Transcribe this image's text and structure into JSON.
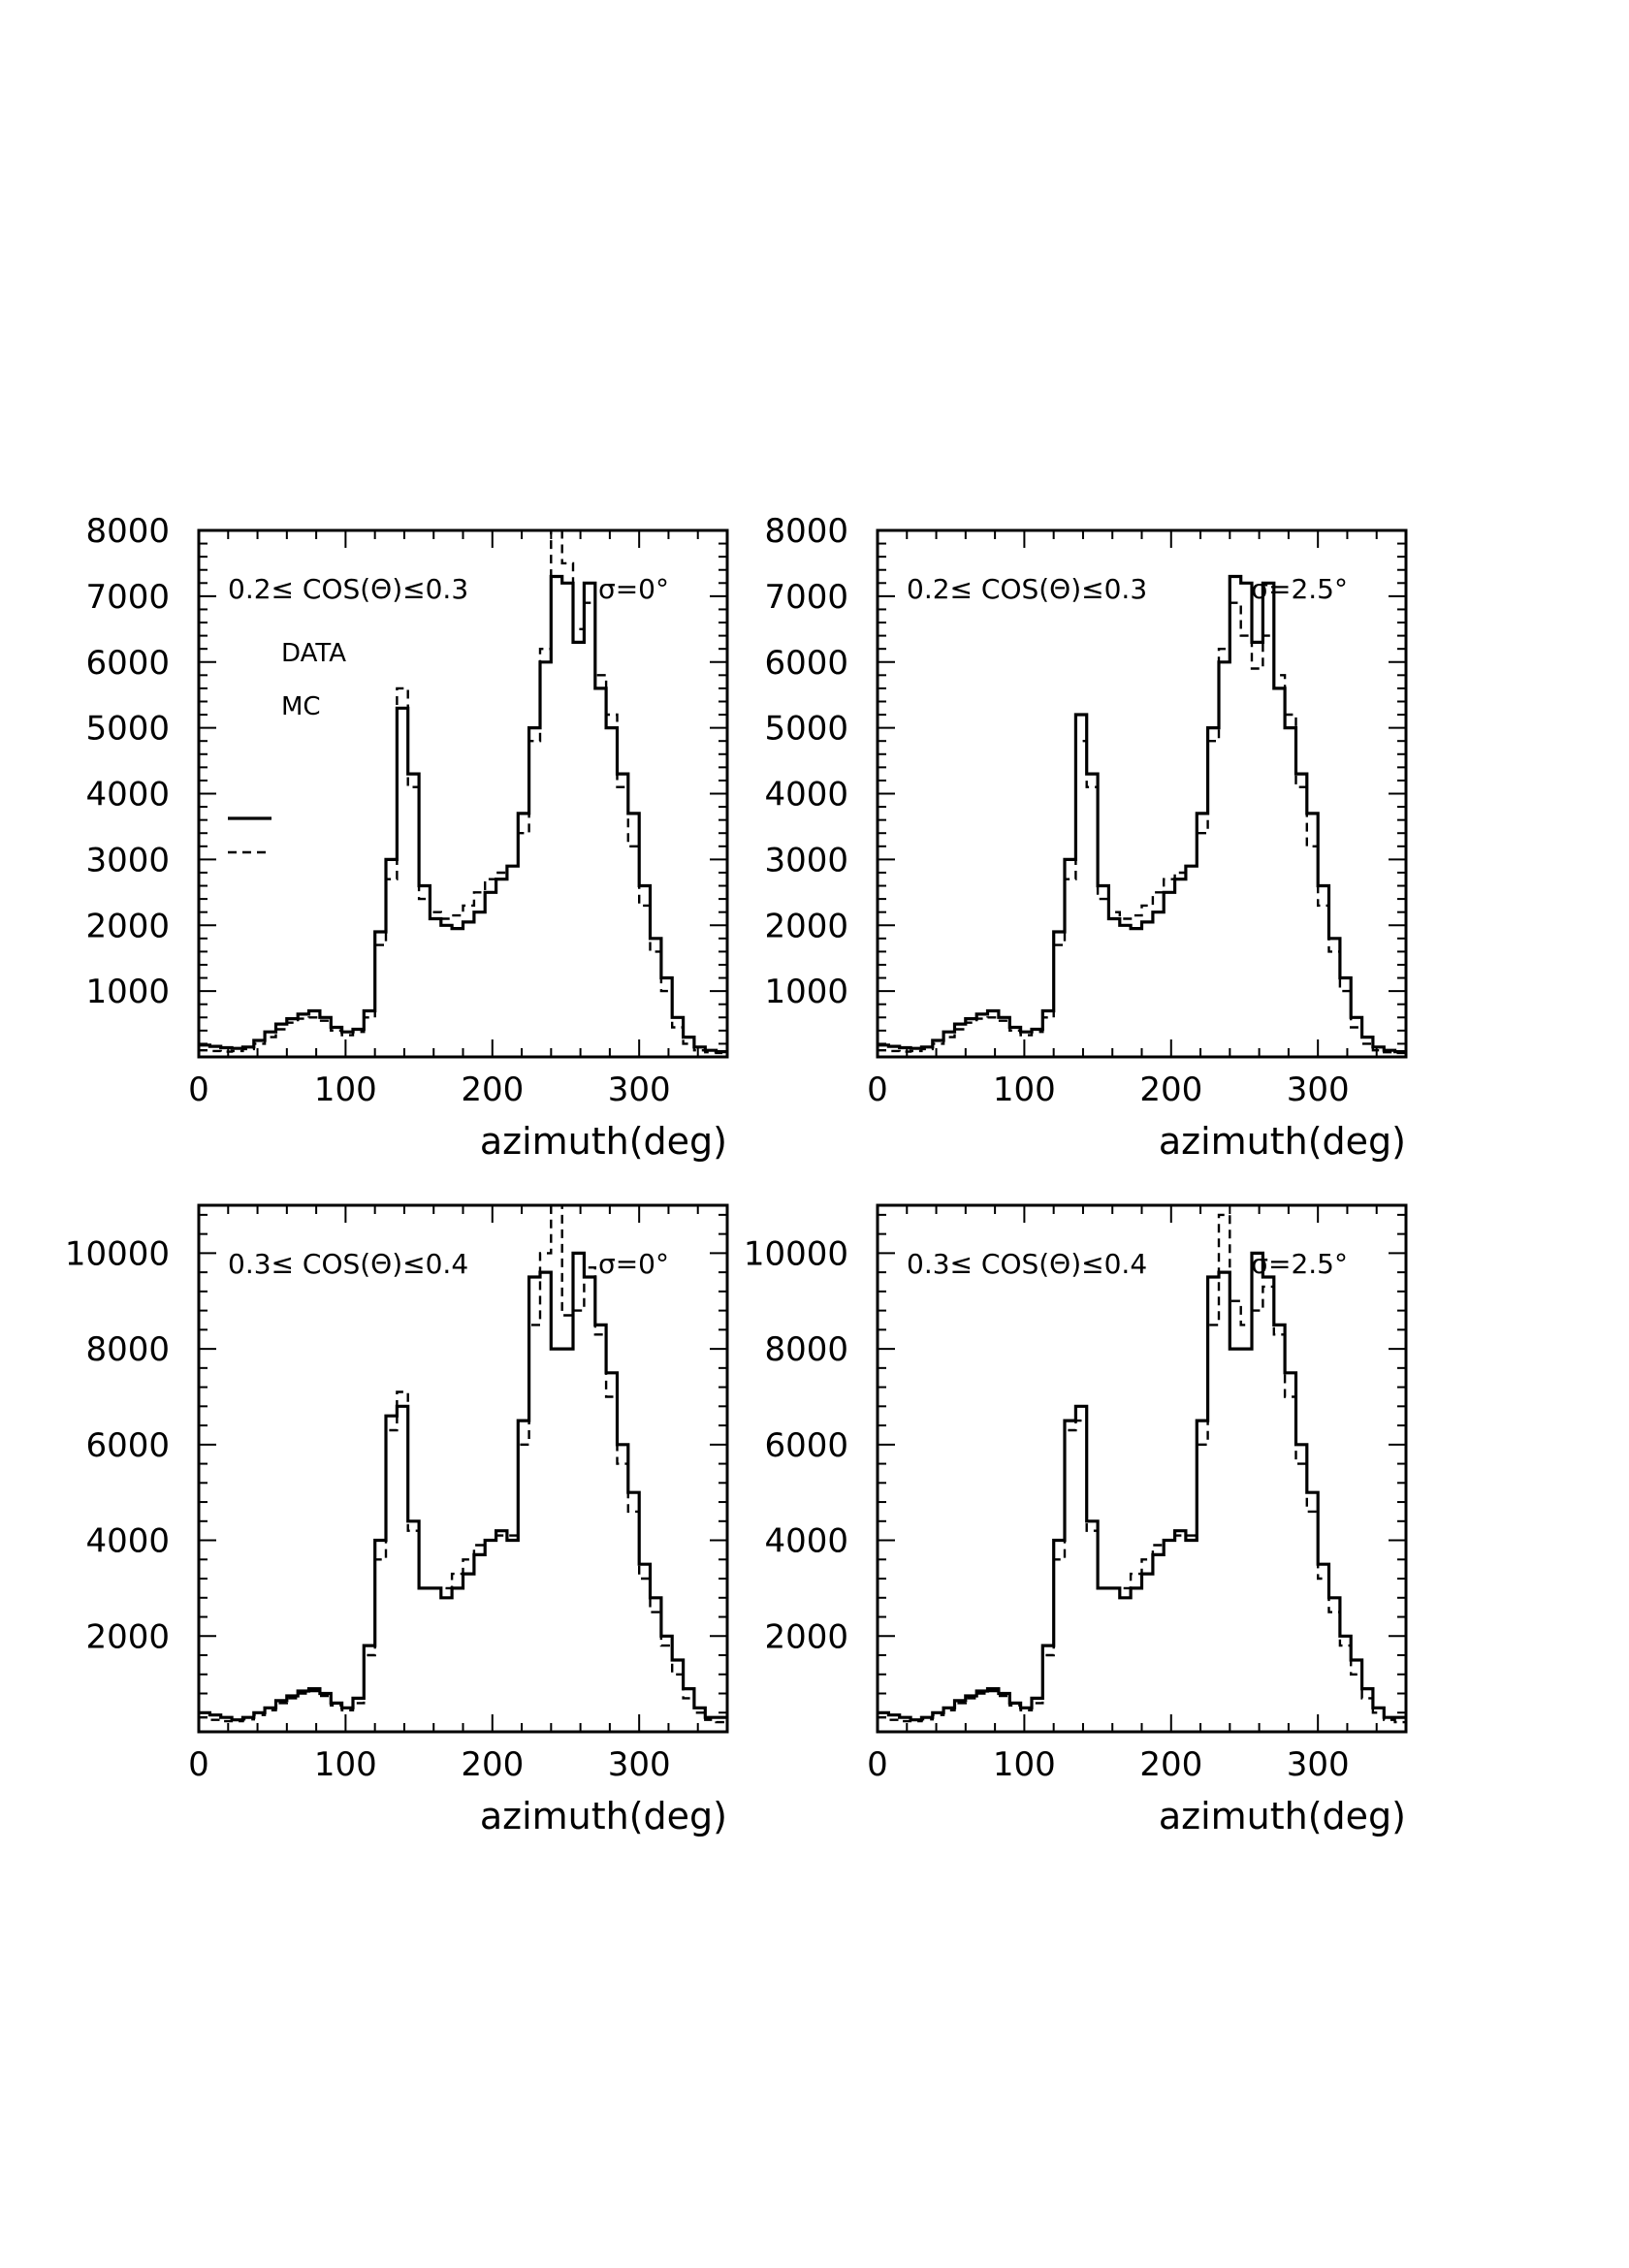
{
  "chart_data": [
    {
      "type": "line",
      "annotation_left": "0.2≤ COS(Θ)≤0.3",
      "annotation_right": "σ=0°",
      "xlabel": "azimuth(deg)",
      "xlim": [
        0,
        360
      ],
      "ylim": [
        0,
        8000
      ],
      "xticks": [
        "0",
        "100",
        "200",
        "300"
      ],
      "yticks": [
        "1000",
        "2000",
        "3000",
        "4000",
        "5000",
        "6000",
        "7000",
        "8000"
      ],
      "legend": [
        {
          "label": "DATA",
          "style": "solid"
        },
        {
          "label": "MC",
          "style": "dashed"
        }
      ],
      "bin_width": 7.5,
      "series": [
        {
          "name": "DATA",
          "style": "solid",
          "values": [
            180,
            160,
            140,
            130,
            150,
            250,
            380,
            500,
            580,
            650,
            700,
            600,
            450,
            380,
            420,
            700,
            1900,
            3000,
            5300,
            4300,
            2600,
            2100,
            2000,
            1950,
            2050,
            2200,
            2500,
            2700,
            2900,
            3700,
            5000,
            6000,
            7300,
            7200,
            6300,
            7200,
            5600,
            5000,
            4300,
            3700,
            2600,
            1800,
            1200,
            600,
            300,
            150,
            100,
            80
          ]
        },
        {
          "name": "MC",
          "style": "dashed",
          "values": [
            100,
            90,
            80,
            90,
            120,
            200,
            300,
            420,
            520,
            580,
            600,
            550,
            400,
            330,
            380,
            600,
            1700,
            2700,
            5600,
            4100,
            2400,
            2200,
            2100,
            2150,
            2300,
            2500,
            2700,
            2800,
            2900,
            3400,
            4800,
            6200,
            8000,
            7500,
            6500,
            6900,
            5800,
            5200,
            4100,
            3200,
            2300,
            1600,
            1000,
            450,
            200,
            100,
            70,
            60
          ]
        }
      ]
    },
    {
      "type": "line",
      "annotation_left": "0.2≤ COS(Θ)≤0.3",
      "annotation_right": "σ=2.5°",
      "xlabel": "azimuth(deg)",
      "xlim": [
        0,
        360
      ],
      "ylim": [
        0,
        8000
      ],
      "xticks": [
        "0",
        "100",
        "200",
        "300"
      ],
      "yticks": [
        "1000",
        "2000",
        "3000",
        "4000",
        "5000",
        "6000",
        "7000",
        "8000"
      ],
      "bin_width": 7.5,
      "series": [
        {
          "name": "DATA",
          "style": "solid",
          "values": [
            180,
            160,
            140,
            130,
            150,
            250,
            380,
            500,
            580,
            650,
            700,
            600,
            450,
            380,
            420,
            700,
            1900,
            3000,
            5200,
            4300,
            2600,
            2100,
            2000,
            1950,
            2050,
            2200,
            2500,
            2700,
            2900,
            3700,
            5000,
            6000,
            7300,
            7200,
            6300,
            7200,
            5600,
            5000,
            4300,
            3700,
            2600,
            1800,
            1200,
            600,
            300,
            150,
            100,
            80
          ]
        },
        {
          "name": "MC",
          "style": "dashed",
          "values": [
            100,
            90,
            80,
            90,
            120,
            200,
            300,
            420,
            520,
            580,
            600,
            550,
            400,
            330,
            380,
            600,
            1700,
            2700,
            4800,
            4100,
            2400,
            2200,
            2100,
            2150,
            2300,
            2500,
            2700,
            2800,
            2900,
            3400,
            4800,
            6200,
            6900,
            6400,
            5900,
            6400,
            5800,
            5200,
            4100,
            3200,
            2300,
            1600,
            1000,
            450,
            200,
            100,
            70,
            60
          ]
        }
      ]
    },
    {
      "type": "line",
      "annotation_left": "0.3≤ COS(Θ)≤0.4",
      "annotation_right": "σ=0°",
      "xlabel": "azimuth(deg)",
      "xlim": [
        0,
        360
      ],
      "ylim": [
        0,
        11000
      ],
      "xticks": [
        "0",
        "100",
        "200",
        "300"
      ],
      "yticks": [
        "2000",
        "4000",
        "6000",
        "8000",
        "10000"
      ],
      "bin_width": 7.5,
      "series": [
        {
          "name": "DATA",
          "style": "solid",
          "values": [
            400,
            350,
            300,
            250,
            300,
            400,
            500,
            650,
            750,
            850,
            900,
            800,
            600,
            500,
            700,
            1800,
            4000,
            6600,
            6800,
            4400,
            3000,
            3000,
            2800,
            3000,
            3300,
            3700,
            4000,
            4200,
            4000,
            6500,
            9500,
            9600,
            8000,
            8000,
            10000,
            9500,
            8500,
            7500,
            6000,
            5000,
            3500,
            2800,
            2000,
            1500,
            900,
            500,
            300,
            300
          ]
        },
        {
          "name": "MC",
          "style": "dashed",
          "values": [
            300,
            250,
            220,
            220,
            260,
            350,
            450,
            600,
            700,
            800,
            850,
            750,
            550,
            450,
            600,
            1600,
            3600,
            6300,
            7100,
            4200,
            3000,
            3000,
            3000,
            3300,
            3600,
            3900,
            4000,
            4100,
            4100,
            6000,
            8500,
            10000,
            11000,
            8700,
            8800,
            9700,
            8300,
            7000,
            5600,
            4600,
            3200,
            2500,
            1800,
            1200,
            700,
            400,
            250,
            200
          ]
        }
      ]
    },
    {
      "type": "line",
      "annotation_left": "0.3≤ COS(Θ)≤0.4",
      "annotation_right": "σ=2.5°",
      "xlabel": "azimuth(deg)",
      "xlim": [
        0,
        360
      ],
      "ylim": [
        0,
        11000
      ],
      "xticks": [
        "0",
        "100",
        "200",
        "300"
      ],
      "yticks": [
        "2000",
        "4000",
        "6000",
        "8000",
        "10000"
      ],
      "bin_width": 7.5,
      "series": [
        {
          "name": "DATA",
          "style": "solid",
          "values": [
            400,
            350,
            300,
            250,
            300,
            400,
            500,
            650,
            750,
            850,
            900,
            800,
            600,
            500,
            700,
            1800,
            4000,
            6500,
            6800,
            4400,
            3000,
            3000,
            2800,
            3000,
            3300,
            3700,
            4000,
            4200,
            4000,
            6500,
            9500,
            9600,
            8000,
            8000,
            10000,
            9500,
            8500,
            7500,
            6000,
            5000,
            3500,
            2800,
            2000,
            1500,
            900,
            500,
            300,
            300
          ]
        },
        {
          "name": "MC",
          "style": "dashed",
          "values": [
            300,
            250,
            220,
            220,
            260,
            350,
            450,
            600,
            700,
            800,
            850,
            750,
            550,
            450,
            600,
            1600,
            3600,
            6300,
            6500,
            4200,
            3000,
            3000,
            3000,
            3300,
            3600,
            3900,
            4000,
            4100,
            4100,
            6000,
            8500,
            10800,
            9000,
            8500,
            8800,
            9300,
            8300,
            7000,
            5600,
            4600,
            3200,
            2500,
            1800,
            1200,
            700,
            400,
            250,
            200
          ]
        }
      ]
    }
  ]
}
